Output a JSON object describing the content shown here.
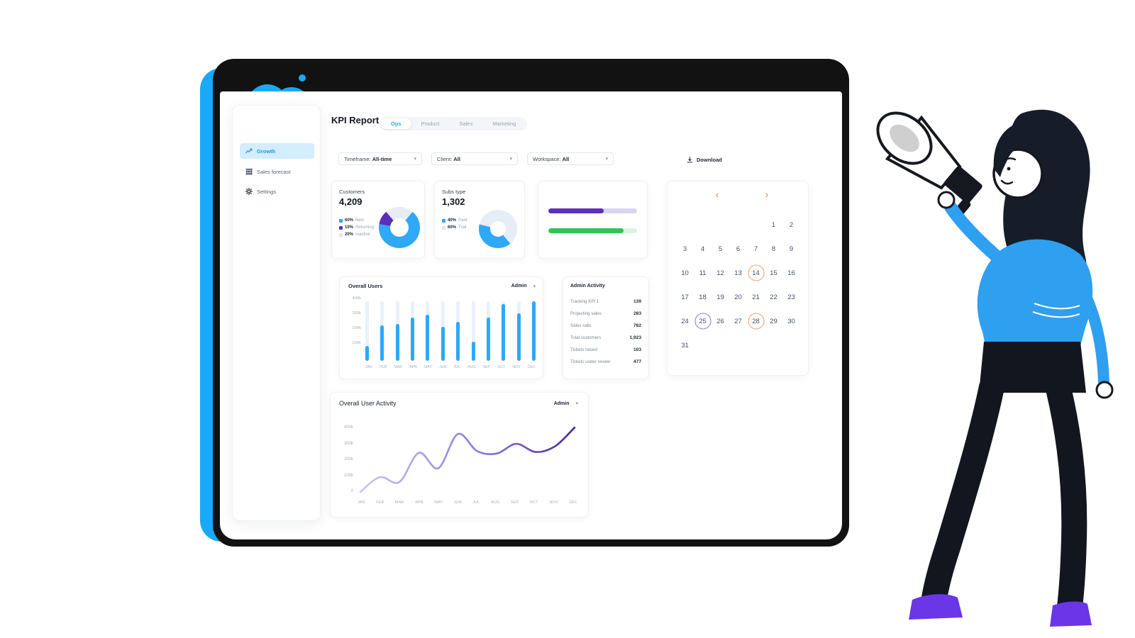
{
  "icons": {
    "chevron_down": "▾",
    "chevron_left": "‹",
    "chevron_right": "›"
  },
  "header": {
    "title": "KPI Report",
    "tabs": [
      {
        "label": "Ops",
        "active": true
      },
      {
        "label": "Product",
        "active": false
      },
      {
        "label": "Sales",
        "active": false
      },
      {
        "label": "Marketing",
        "active": false
      }
    ]
  },
  "sidebar": {
    "items": [
      {
        "label": "Growth",
        "icon": "trend-icon",
        "active": true
      },
      {
        "label": "Sales forecast",
        "icon": "grid-icon",
        "active": false
      },
      {
        "label": "Settings",
        "icon": "gear-icon",
        "active": false
      }
    ]
  },
  "filters": [
    {
      "label": "Timeframe:",
      "value": "All-time"
    },
    {
      "label": "Client:",
      "value": "All"
    },
    {
      "label": "Workspace:",
      "value": "All"
    }
  ],
  "download_label": "Download",
  "cards": {
    "customers": {
      "title": "Customers",
      "value": "4,209"
    },
    "subs": {
      "title": "Subs type",
      "value": "1,302"
    },
    "progress": {
      "bars": [
        {
          "color": "#5B2EBC",
          "track": "#DAD3F2",
          "pct": 62
        },
        {
          "color": "#2DC653",
          "track": "#D9F2DE",
          "pct": 85
        }
      ]
    }
  },
  "calendar": {
    "weeks": [
      [
        null,
        null,
        null,
        null,
        null,
        1,
        2
      ],
      [
        3,
        4,
        5,
        6,
        7,
        8,
        9
      ],
      [
        10,
        11,
        12,
        13,
        14,
        15,
        16
      ],
      [
        17,
        18,
        19,
        20,
        21,
        22,
        23
      ],
      [
        24,
        25,
        26,
        27,
        28,
        29,
        30
      ],
      [
        31,
        null,
        null,
        null,
        null,
        null,
        null
      ]
    ],
    "highlight_orange": [
      14,
      28
    ],
    "highlight_purple": [
      25
    ]
  },
  "activity": {
    "title": "Admin Activity",
    "rows": [
      {
        "label": "Tracking KPI 1",
        "value": "139"
      },
      {
        "label": "Projecting sales",
        "value": "283"
      },
      {
        "label": "Sales calls",
        "value": "782"
      },
      {
        "label": "Total customers",
        "value": "1,923"
      },
      {
        "label": "Tickets raised",
        "value": "103"
      },
      {
        "label": "Tickets under review",
        "value": "477"
      }
    ]
  },
  "chart_data": [
    {
      "type": "bar",
      "title": "Overall Users",
      "dropdown": "Admin",
      "categories": [
        "JAN",
        "FEB",
        "MAR",
        "APR",
        "MAY",
        "JUN",
        "JUL",
        "AUG",
        "SEP",
        "OCT",
        "NOV",
        "DEC"
      ],
      "values": [
        100,
        240,
        250,
        290,
        310,
        230,
        260,
        130,
        290,
        380,
        320,
        400
      ],
      "unit": "k",
      "ylim": [
        0,
        400
      ],
      "yticks": [
        "400k",
        "300k",
        "200k",
        "100k"
      ],
      "bar_color": "#2FA8F5",
      "track_color": "#E9F2FB",
      "grid": false,
      "legend_position": "none"
    },
    {
      "type": "line",
      "title": "Overall User Activity",
      "dropdown": "Admin",
      "categories": [
        "JAN",
        "FEB",
        "MAR",
        "APR",
        "MAY",
        "JUN",
        "JUL",
        "AUG",
        "SEP",
        "OCT",
        "NOV",
        "DEC"
      ],
      "values": [
        5,
        95,
        65,
        245,
        150,
        360,
        255,
        240,
        300,
        250,
        285,
        400
      ],
      "unit": "k",
      "ylim": [
        0,
        400
      ],
      "yticks": [
        "400k",
        "300k",
        "200k",
        "100k",
        "0"
      ],
      "line_gradient": [
        "#CDC5F1",
        "#4A28A8"
      ],
      "grid": false,
      "legend_position": "none"
    },
    {
      "type": "pie",
      "title": "Customers",
      "slices": [
        {
          "label": "New",
          "pct": 60,
          "color": "#2FA8F5"
        },
        {
          "label": "Returning",
          "pct": 10,
          "color": "#5B2EBC"
        },
        {
          "label": "Inactive",
          "pct": 20,
          "color": "#E7EDF5"
        }
      ]
    },
    {
      "type": "pie",
      "title": "Subs type",
      "slices": [
        {
          "label": "Paid",
          "pct": 40,
          "color": "#2FA8F5"
        },
        {
          "label": "Trial",
          "pct": 60,
          "color": "#E7EDF5"
        }
      ]
    }
  ],
  "colors": {
    "accent": "#19A9F6",
    "purple": "#5B2EBC",
    "green": "#2DC653",
    "orange": "#EFA068"
  }
}
